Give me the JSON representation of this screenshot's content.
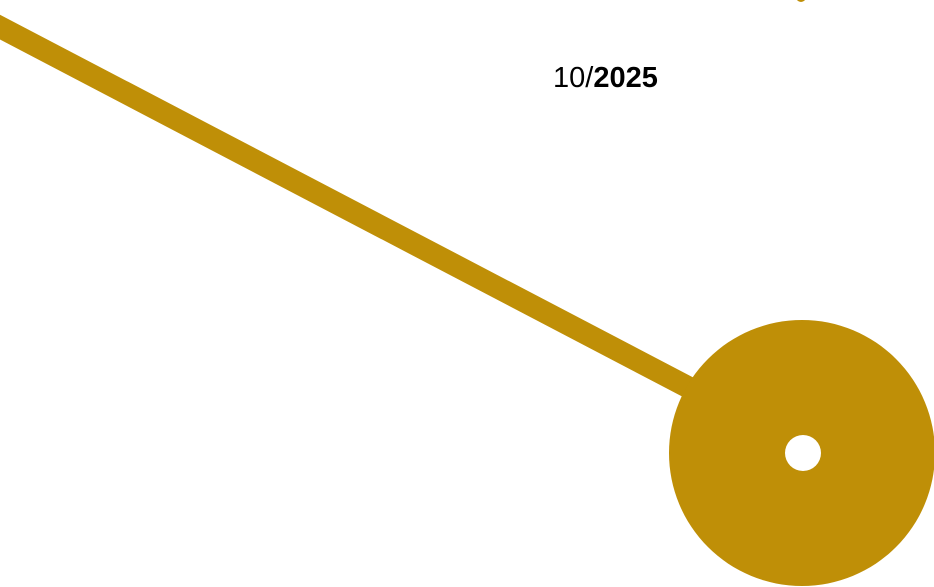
{
  "date": {
    "month_prefix": "10/",
    "year": "2025"
  },
  "colors": {
    "accent": "#BF8F07",
    "background": "#FFFFFF"
  }
}
